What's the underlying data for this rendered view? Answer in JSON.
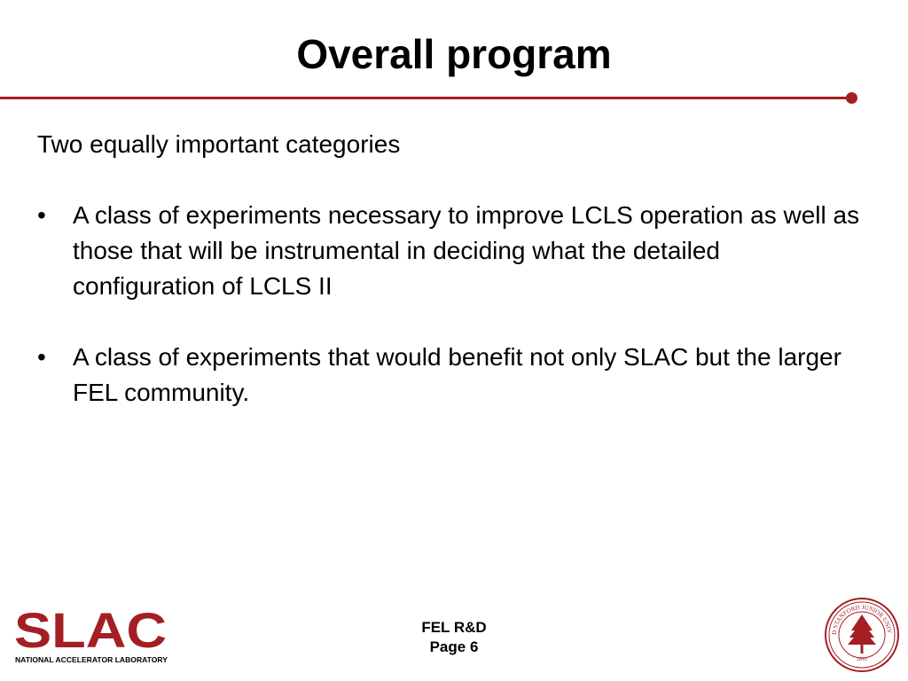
{
  "slide": {
    "title": "Overall program",
    "intro": "Two equally important categories",
    "bullets": [
      "A class of experiments necessary to improve LCLS operation as well as those that will be instrumental in deciding what the detailed configuration of LCLS II",
      "A class of experiments that would benefit not only SLAC but the larger FEL community."
    ],
    "bullet_char": "•"
  },
  "footer": {
    "line1": "FEL R&D",
    "line2": "Page 6",
    "logo_text": "SLAC",
    "logo_subtext": "NATIONAL ACCELERATOR LABORATORY",
    "seal_text": "LELAND STANFORD JUNIOR UNIVERSITY",
    "seal_year": "1891"
  },
  "colors": {
    "accent": "#a31f24"
  }
}
